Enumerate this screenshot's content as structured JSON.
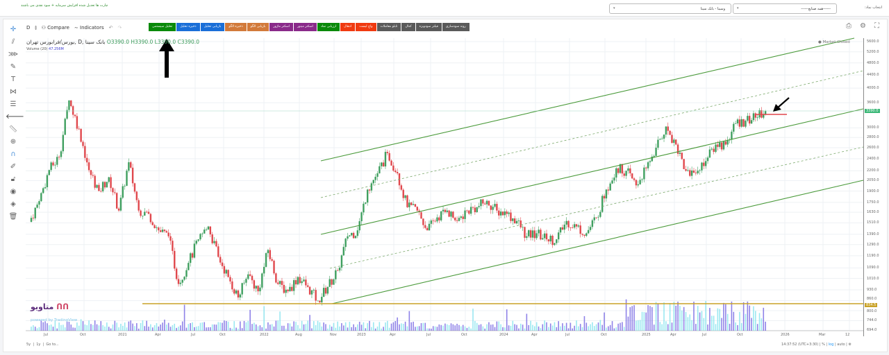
{
  "header": {
    "note": "چارت ها تعدیل شده افزایش سرمایه + سود نقدی می باشند",
    "symbol_label": "انتخاب نماد:",
    "industry_select": "------همه صنایع------",
    "symbol_select": "وسینا - بانک سینا"
  },
  "toolbar": {
    "interval": "D",
    "compare": "Compare",
    "indicators": "Indicators",
    "buttons": [
      {
        "label": "تحلیل سیستمی",
        "color": "#0a8a0a"
      },
      {
        "label": "ذخیره تحلیل",
        "color": "#1a6fd8"
      },
      {
        "label": "بازیابی تحلیل",
        "color": "#1a6fd8"
      },
      {
        "label": "ذخیره الگو",
        "color": "#d27a3a"
      },
      {
        "label": "بازیابی الگو",
        "color": "#d27a3a"
      },
      {
        "label": "اسکنر ماژور",
        "color": "#8a2a8a"
      },
      {
        "label": "اسکنر مینور",
        "color": "#8a2a8a"
      },
      {
        "label": "ارزیابی نماد",
        "color": "#0a8a0a"
      },
      {
        "label": "انتقال",
        "color": "#f03a10"
      },
      {
        "label": "واچ لیست",
        "color": "#f03a10"
      },
      {
        "label": "تابلو معاملات",
        "color": "#5a5a5a"
      },
      {
        "label": "کدال",
        "color": "#5a5a5a"
      },
      {
        "label": "فیلتر سودویژه",
        "color": "#5a5a5a"
      },
      {
        "label": "روند سودسازی",
        "color": "#5a5a5a"
      }
    ]
  },
  "legend": {
    "symbol": "بورس/فرابورس تهران, D, بانک سینا",
    "open": "O3390.0",
    "high": "H3390.0",
    "low": "L3390.0",
    "close": "C3390.0",
    "volume_label": "Volume (20)",
    "volume_value": "47.256M",
    "market_status": "Market Closed"
  },
  "chart_data": {
    "type": "candlestick",
    "scale": "log",
    "grid": true,
    "closes": [
      1520,
      1766,
      2212,
      2430,
      3660,
      2980,
      2210,
      1900,
      2100,
      1650,
      2340,
      1650,
      1610,
      1430,
      1370,
      970,
      1130,
      1340,
      1470,
      1180,
      1020,
      880,
      1040,
      920,
      1240,
      970,
      920,
      1020,
      950,
      860,
      950,
      1070,
      1370,
      1430,
      1920,
      2160,
      2500,
      2160,
      1690,
      1650,
      1430,
      1570,
      1650,
      1530,
      1650,
      1690,
      1770,
      1650,
      1610,
      1530,
      1370,
      1400,
      1340,
      1340,
      1530,
      1470,
      1400,
      1570,
      1920,
      2240,
      2200,
      1980,
      2240,
      2600,
      3030,
      2660,
      2200,
      2160,
      2360,
      2660,
      2660,
      3100,
      3160,
      3230,
      3390
    ],
    "price_ticks": [
      "5600.0",
      "5200.0",
      "4800.0",
      "4400.0",
      "4000.0",
      "3600.0",
      "3000.0",
      "2800.0",
      "2600.0",
      "2400.0",
      "2200.0",
      "2050.0",
      "1900.0",
      "1750.0",
      "1630.0",
      "1510.0",
      "1390.0",
      "1290.0",
      "1190.0",
      "1090.0",
      "1010.0",
      "930.0",
      "860.0",
      "800.0",
      "744.0",
      "694.0"
    ],
    "last_price": "3390.0",
    "support_level": "834.5",
    "time_ticks": [
      "Jul",
      "Oct",
      "2021",
      "Apr",
      "Jul",
      "Oct",
      "2022",
      "Aug",
      "Nov",
      "2023",
      "Apr",
      "Jul",
      "Oct",
      "2024",
      "Apr",
      "Jul",
      "Oct",
      "2025",
      "Apr",
      "Jul",
      "Oct",
      "2026",
      "Mar",
      "12"
    ],
    "colors": {
      "up": "#3f9f5f",
      "down": "#e0474c",
      "channel": "#4a9a3a",
      "support": "#c9a227",
      "last": "#3cb878",
      "volume_a": "#6a5ae0",
      "volume_b": "#7ae0ec"
    }
  },
  "brand": {
    "name": "متاویو",
    "powered": "powered by TradingView"
  },
  "bottom": {
    "r5y": "5y",
    "r1y": "1y",
    "goto": "Go to...",
    "time": "14:37:52 (UTC+3:30)",
    "pct": "%",
    "log": "log",
    "auto": "auto"
  }
}
